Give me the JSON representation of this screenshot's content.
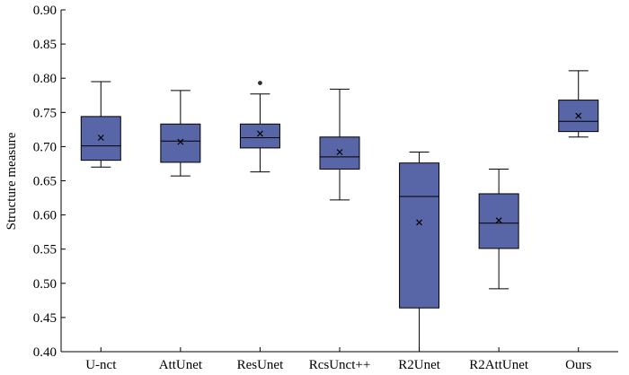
{
  "chart_data": {
    "type": "box",
    "title": "",
    "xlabel": "",
    "ylabel": "Structure measure",
    "ylim": [
      0.4,
      0.9
    ],
    "y_ticks": [
      "0.40",
      "0.45",
      "0.50",
      "0.55",
      "0.60",
      "0.65",
      "0.70",
      "0.75",
      "0.80",
      "0.85",
      "0.90"
    ],
    "grid": false,
    "colors": {
      "box_fill": "#5865a6",
      "box_stroke": "#000000",
      "axis": "#000000"
    },
    "categories": [
      "U-nct",
      "AttUnet",
      "ResUnet",
      "RcsUnct++",
      "R2Unet",
      "R2AttUnet",
      "Ours"
    ],
    "boxes": [
      {
        "whisker_low": 0.67,
        "q1": 0.68,
        "median": 0.701,
        "q3": 0.744,
        "whisker_high": 0.795,
        "mean": 0.713,
        "outliers": []
      },
      {
        "whisker_low": 0.657,
        "q1": 0.677,
        "median": 0.708,
        "q3": 0.733,
        "whisker_high": 0.782,
        "mean": 0.707,
        "outliers": []
      },
      {
        "whisker_low": 0.663,
        "q1": 0.698,
        "median": 0.713,
        "q3": 0.733,
        "whisker_high": 0.777,
        "mean": 0.719,
        "outliers": [
          0.793
        ]
      },
      {
        "whisker_low": 0.622,
        "q1": 0.667,
        "median": 0.685,
        "q3": 0.714,
        "whisker_high": 0.784,
        "mean": 0.692,
        "outliers": []
      },
      {
        "whisker_low": 0.4,
        "q1": 0.464,
        "median": 0.627,
        "q3": 0.676,
        "whisker_high": 0.692,
        "mean": 0.589,
        "outliers": []
      },
      {
        "whisker_low": 0.492,
        "q1": 0.551,
        "median": 0.588,
        "q3": 0.631,
        "whisker_high": 0.667,
        "mean": 0.592,
        "outliers": []
      },
      {
        "whisker_low": 0.714,
        "q1": 0.722,
        "median": 0.737,
        "q3": 0.768,
        "whisker_high": 0.811,
        "mean": 0.745,
        "outliers": []
      }
    ]
  }
}
